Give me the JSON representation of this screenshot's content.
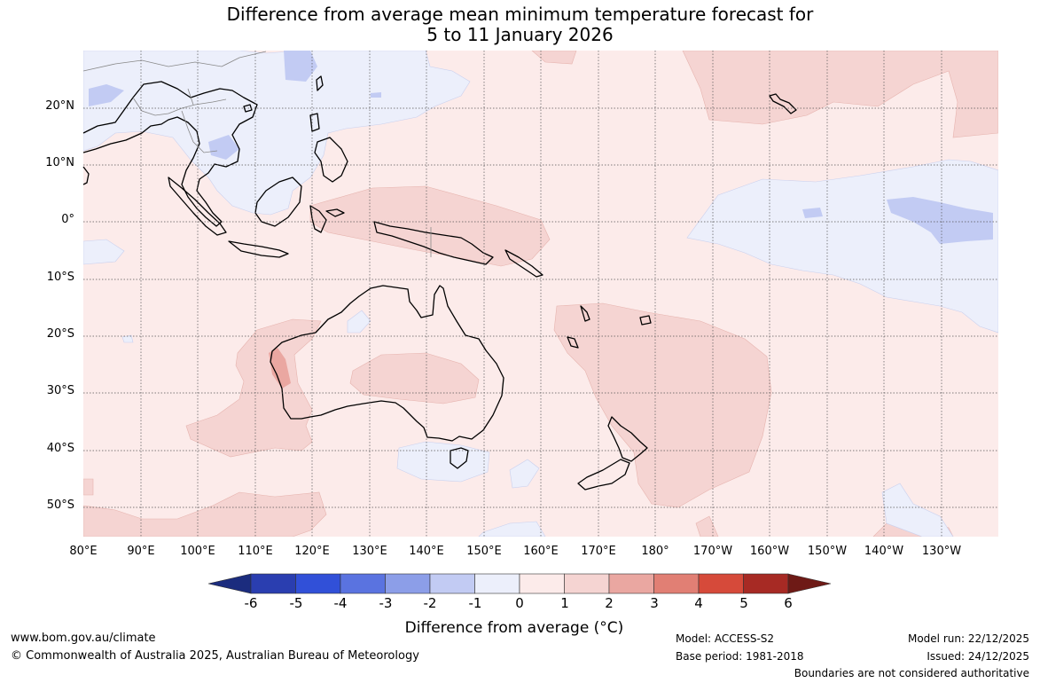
{
  "title": {
    "line1": "Difference from average mean minimum temperature forecast for",
    "line2": "5 to 11 January 2026"
  },
  "latitude_labels": [
    "20°N",
    "10°N",
    "0°",
    "10°S",
    "20°S",
    "30°S",
    "40°S",
    "50°S"
  ],
  "longitude_labels": [
    "80°E",
    "90°E",
    "100°E",
    "110°E",
    "120°E",
    "130°E",
    "140°E",
    "150°E",
    "160°E",
    "170°E",
    "180°",
    "170°W",
    "160°W",
    "150°W",
    "140°W",
    "130°W"
  ],
  "colorbar": {
    "ticks": [
      "-6",
      "-5",
      "-4",
      "-3",
      "-2",
      "-1",
      "0",
      "1",
      "2",
      "3",
      "4",
      "5",
      "6"
    ],
    "colors": [
      "#1b2c7e",
      "#2a3eb0",
      "#3150d8",
      "#5a73e0",
      "#8c9ee8",
      "#c2cbf3",
      "#eceffb",
      "#fcebea",
      "#f5d4d2",
      "#eaa7a1",
      "#e17f74",
      "#d64a3a",
      "#a72a24",
      "#6e1a16"
    ],
    "label": "Difference from average (°C)"
  },
  "footer": {
    "website": "www.bom.gov.au/climate",
    "copyright": "© Commonwealth of Australia 2025, Australian Bureau of Meteorology",
    "model": "Model: ACCESS-S2",
    "base_period": "Base period: 1981-2018",
    "model_run": "Model run: 22/12/2025",
    "issued": "Issued: 24/12/2025",
    "disclaimer": "Boundaries are not considered authoritative"
  }
}
